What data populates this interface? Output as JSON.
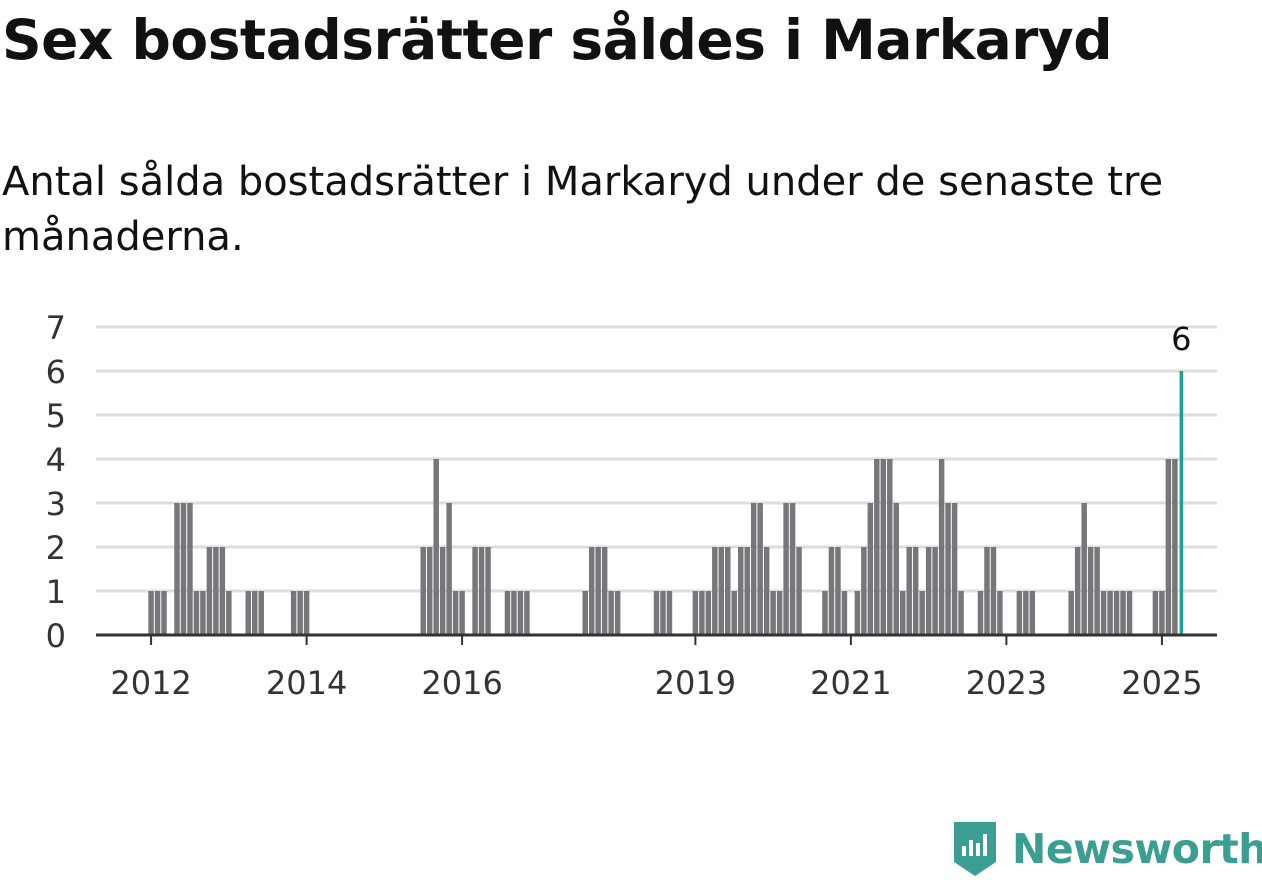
{
  "title": "Sex bostadsrätter såldes i Markaryd",
  "subtitle": "Antal sålda bostadsrätter i Markaryd under de senaste tre månaderna.",
  "brand": {
    "name": "Newsworthy",
    "icon": "newsworthy-logo-icon",
    "color": "#3a9e93"
  },
  "colors": {
    "bar": "#77767b",
    "highlight": "#17a394",
    "grid": "#dddddd",
    "axis": "#333333"
  },
  "chart_data": {
    "type": "bar",
    "title": "Sex bostadsrätter såldes i Markaryd",
    "xlabel": "",
    "ylabel": "",
    "ylim": [
      0,
      7
    ],
    "yticks": [
      0,
      1,
      2,
      3,
      4,
      5,
      6,
      7
    ],
    "grid": true,
    "xlim": [
      "2011-05",
      "2025-09"
    ],
    "xticks": [
      {
        "label": "2012",
        "month": "2012-01"
      },
      {
        "label": "2014",
        "month": "2014-01"
      },
      {
        "label": "2016",
        "month": "2016-01"
      },
      {
        "label": "2019",
        "month": "2019-01"
      },
      {
        "label": "2021",
        "month": "2021-01"
      },
      {
        "label": "2023",
        "month": "2023-01"
      },
      {
        "label": "2025",
        "month": "2025-01"
      }
    ],
    "bars": [
      {
        "month": "2012-01",
        "value": 1
      },
      {
        "month": "2012-02",
        "value": 1
      },
      {
        "month": "2012-03",
        "value": 1
      },
      {
        "month": "2012-05",
        "value": 3
      },
      {
        "month": "2012-06",
        "value": 3
      },
      {
        "month": "2012-07",
        "value": 3
      },
      {
        "month": "2012-08",
        "value": 1
      },
      {
        "month": "2012-09",
        "value": 1
      },
      {
        "month": "2012-10",
        "value": 2
      },
      {
        "month": "2012-11",
        "value": 2
      },
      {
        "month": "2012-12",
        "value": 2
      },
      {
        "month": "2013-01",
        "value": 1
      },
      {
        "month": "2013-04",
        "value": 1
      },
      {
        "month": "2013-05",
        "value": 1
      },
      {
        "month": "2013-06",
        "value": 1
      },
      {
        "month": "2013-11",
        "value": 1
      },
      {
        "month": "2013-12",
        "value": 1
      },
      {
        "month": "2014-01",
        "value": 1
      },
      {
        "month": "2015-07",
        "value": 2
      },
      {
        "month": "2015-08",
        "value": 2
      },
      {
        "month": "2015-09",
        "value": 4
      },
      {
        "month": "2015-10",
        "value": 2
      },
      {
        "month": "2015-11",
        "value": 3
      },
      {
        "month": "2015-12",
        "value": 1
      },
      {
        "month": "2016-01",
        "value": 1
      },
      {
        "month": "2016-03",
        "value": 2
      },
      {
        "month": "2016-04",
        "value": 2
      },
      {
        "month": "2016-05",
        "value": 2
      },
      {
        "month": "2016-08",
        "value": 1
      },
      {
        "month": "2016-09",
        "value": 1
      },
      {
        "month": "2016-10",
        "value": 1
      },
      {
        "month": "2016-11",
        "value": 1
      },
      {
        "month": "2017-08",
        "value": 1
      },
      {
        "month": "2017-09",
        "value": 2
      },
      {
        "month": "2017-10",
        "value": 2
      },
      {
        "month": "2017-11",
        "value": 2
      },
      {
        "month": "2017-12",
        "value": 1
      },
      {
        "month": "2018-01",
        "value": 1
      },
      {
        "month": "2018-07",
        "value": 1
      },
      {
        "month": "2018-08",
        "value": 1
      },
      {
        "month": "2018-09",
        "value": 1
      },
      {
        "month": "2019-01",
        "value": 1
      },
      {
        "month": "2019-02",
        "value": 1
      },
      {
        "month": "2019-03",
        "value": 1
      },
      {
        "month": "2019-04",
        "value": 2
      },
      {
        "month": "2019-05",
        "value": 2
      },
      {
        "month": "2019-06",
        "value": 2
      },
      {
        "month": "2019-07",
        "value": 1
      },
      {
        "month": "2019-08",
        "value": 2
      },
      {
        "month": "2019-09",
        "value": 2
      },
      {
        "month": "2019-10",
        "value": 3
      },
      {
        "month": "2019-11",
        "value": 3
      },
      {
        "month": "2019-12",
        "value": 2
      },
      {
        "month": "2020-01",
        "value": 1
      },
      {
        "month": "2020-02",
        "value": 1
      },
      {
        "month": "2020-03",
        "value": 3
      },
      {
        "month": "2020-04",
        "value": 3
      },
      {
        "month": "2020-05",
        "value": 2
      },
      {
        "month": "2020-09",
        "value": 1
      },
      {
        "month": "2020-10",
        "value": 2
      },
      {
        "month": "2020-11",
        "value": 2
      },
      {
        "month": "2020-12",
        "value": 1
      },
      {
        "month": "2021-02",
        "value": 1
      },
      {
        "month": "2021-03",
        "value": 2
      },
      {
        "month": "2021-04",
        "value": 3
      },
      {
        "month": "2021-05",
        "value": 4
      },
      {
        "month": "2021-06",
        "value": 4
      },
      {
        "month": "2021-07",
        "value": 4
      },
      {
        "month": "2021-08",
        "value": 3
      },
      {
        "month": "2021-09",
        "value": 1
      },
      {
        "month": "2021-10",
        "value": 2
      },
      {
        "month": "2021-11",
        "value": 2
      },
      {
        "month": "2021-12",
        "value": 1
      },
      {
        "month": "2022-01",
        "value": 2
      },
      {
        "month": "2022-02",
        "value": 2
      },
      {
        "month": "2022-03",
        "value": 4
      },
      {
        "month": "2022-04",
        "value": 3
      },
      {
        "month": "2022-05",
        "value": 3
      },
      {
        "month": "2022-06",
        "value": 1
      },
      {
        "month": "2022-09",
        "value": 1
      },
      {
        "month": "2022-10",
        "value": 2
      },
      {
        "month": "2022-11",
        "value": 2
      },
      {
        "month": "2022-12",
        "value": 1
      },
      {
        "month": "2023-03",
        "value": 1
      },
      {
        "month": "2023-04",
        "value": 1
      },
      {
        "month": "2023-05",
        "value": 1
      },
      {
        "month": "2023-11",
        "value": 1
      },
      {
        "month": "2023-12",
        "value": 2
      },
      {
        "month": "2024-01",
        "value": 3
      },
      {
        "month": "2024-02",
        "value": 2
      },
      {
        "month": "2024-03",
        "value": 2
      },
      {
        "month": "2024-04",
        "value": 1
      },
      {
        "month": "2024-05",
        "value": 1
      },
      {
        "month": "2024-06",
        "value": 1
      },
      {
        "month": "2024-07",
        "value": 1
      },
      {
        "month": "2024-08",
        "value": 1
      },
      {
        "month": "2024-12",
        "value": 1
      },
      {
        "month": "2025-01",
        "value": 1
      },
      {
        "month": "2025-02",
        "value": 4
      },
      {
        "month": "2025-03",
        "value": 4
      },
      {
        "month": "2025-04",
        "value": 6,
        "highlight": true,
        "label": "6"
      }
    ]
  }
}
